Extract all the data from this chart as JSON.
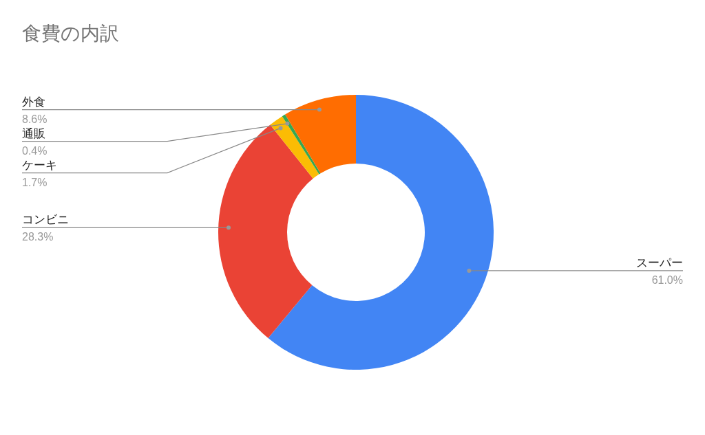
{
  "chart_data": {
    "type": "donut",
    "title": "食費の内訳",
    "categories": [
      "スーパー",
      "コンビニ",
      "ケーキ",
      "通販",
      "外食"
    ],
    "values": [
      61.0,
      28.3,
      1.7,
      0.4,
      8.6
    ],
    "colors": [
      "#4285f4",
      "#ea4335",
      "#fbbc04",
      "#34a853",
      "#ff6d01"
    ],
    "value_labels": [
      "61.0%",
      "28.3%",
      "1.7%",
      "0.4%",
      "8.6%"
    ],
    "legend": false
  }
}
